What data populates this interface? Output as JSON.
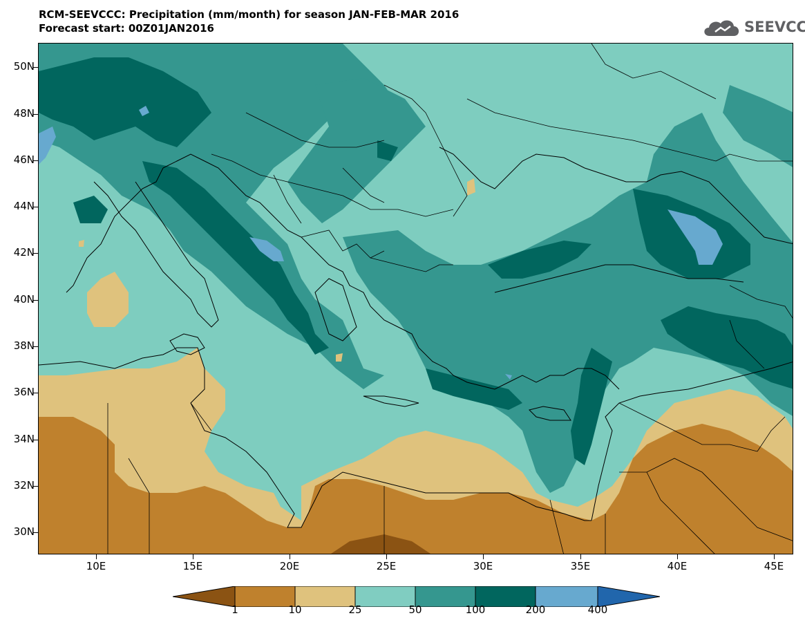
{
  "header": {
    "title_line1": "RCM-SEEVCCC: Precipitation (mm/month) for season JAN-FEB-MAR 2016",
    "title_line2": "Forecast start: 00Z01JAN2016"
  },
  "logo": {
    "text": "SEEVCCC",
    "icon": "cloud-icon"
  },
  "map": {
    "lat_labels": [
      "50N",
      "48N",
      "46N",
      "44N",
      "42N",
      "40N",
      "38N",
      "36N",
      "34N",
      "32N",
      "30N"
    ],
    "lon_labels": [
      "10E",
      "15E",
      "20E",
      "25E",
      "30E",
      "35E",
      "40E",
      "45E"
    ],
    "lon_range": [
      7,
      46
    ],
    "lat_range": [
      29,
      51
    ],
    "projection": "lat-lon",
    "coastlines": true,
    "borders": true
  },
  "legend": {
    "labels": [
      "1",
      "10",
      "25",
      "50",
      "100",
      "200",
      "400"
    ],
    "bins": [
      {
        "range": "< 1",
        "color": "#8b5313"
      },
      {
        "range": "1-10",
        "color": "#bf812d"
      },
      {
        "range": "10-25",
        "color": "#dfc27d"
      },
      {
        "range": "25-50",
        "color": "#80cdc1"
      },
      {
        "range": "50-100",
        "color": "#35978f"
      },
      {
        "range": "100-200",
        "color": "#01665e"
      },
      {
        "range": "200-400",
        "color": "#67a9cf"
      },
      {
        "range": "> 400",
        "color": "#2166ac"
      }
    ]
  }
}
